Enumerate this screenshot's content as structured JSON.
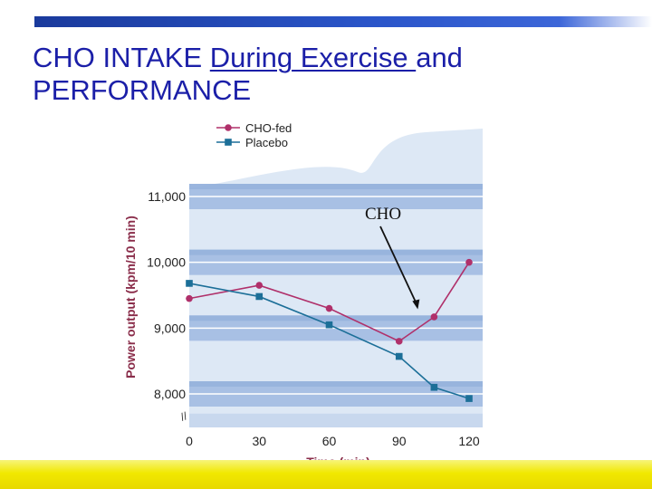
{
  "slide": {
    "title_part1": "CHO INTAKE ",
    "title_part2": "During Exercise ",
    "title_part3": "and",
    "title_line2": "PERFORMANCE"
  },
  "chart_data": {
    "type": "line",
    "title": "",
    "xlabel": "Time (min)",
    "ylabel": "Power output (kpm/10 min)",
    "x_ticks": [
      0,
      30,
      60,
      90,
      120
    ],
    "y_ticks": [
      8000,
      9000,
      10000,
      11000
    ],
    "y_tick_labels": [
      "8,000",
      "9,000",
      "10,000",
      "11,000"
    ],
    "x_tick_labels": [
      "0",
      "30",
      "60",
      "90",
      "120"
    ],
    "xlim": [
      0,
      125
    ],
    "ylim": [
      7600,
      11500
    ],
    "series": [
      {
        "name": "CHO-fed",
        "color": "#b0306a",
        "marker": "circle",
        "x": [
          0,
          30,
          60,
          90,
          105,
          120
        ],
        "y": [
          9450,
          9650,
          9300,
          8800,
          9170,
          10000
        ]
      },
      {
        "name": "Placebo",
        "color": "#1c6f98",
        "marker": "square",
        "x": [
          0,
          30,
          60,
          90,
          105,
          120
        ],
        "y": [
          9680,
          9480,
          9050,
          8570,
          8100,
          7930
        ]
      }
    ],
    "annotation": {
      "text": "CHO",
      "arrow_to": {
        "x": 98,
        "y": 9300
      }
    },
    "axis_break": "//"
  }
}
